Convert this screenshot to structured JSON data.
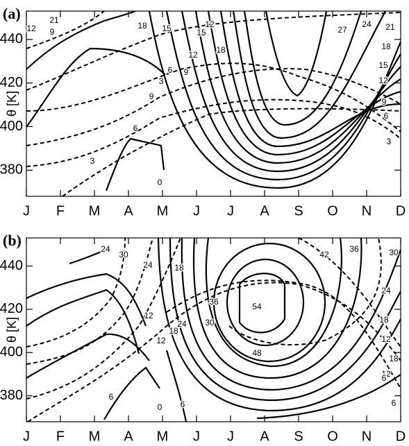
{
  "chart_data": [
    {
      "type": "contour",
      "panel_label": "(a)",
      "ylabel": "θ [K]",
      "categories": [
        "J",
        "F",
        "M",
        "A",
        "M",
        "J",
        "J",
        "A",
        "S",
        "O",
        "N",
        "D"
      ],
      "ylim": [
        368,
        453
      ],
      "yticks": [
        380,
        400,
        420,
        440
      ],
      "contour_labels": [
        12,
        21,
        9,
        18,
        15,
        15,
        12,
        12,
        18,
        9,
        6,
        3,
        9,
        6,
        3,
        0,
        27,
        24,
        21,
        18,
        15,
        12,
        9,
        6,
        3
      ]
    },
    {
      "type": "contour",
      "panel_label": "(b)",
      "ylabel": "θ [K]",
      "categories": [
        "J",
        "F",
        "M",
        "A",
        "M",
        "J",
        "J",
        "A",
        "S",
        "O",
        "N",
        "D"
      ],
      "ylim": [
        368,
        453
      ],
      "yticks": [
        380,
        400,
        420,
        440
      ],
      "contour_labels": [
        24,
        30,
        24,
        18,
        36,
        30,
        24,
        18,
        12,
        12,
        54,
        48,
        42,
        36,
        30,
        24,
        18,
        12,
        18,
        12,
        6,
        6,
        6,
        0,
        6
      ]
    }
  ]
}
